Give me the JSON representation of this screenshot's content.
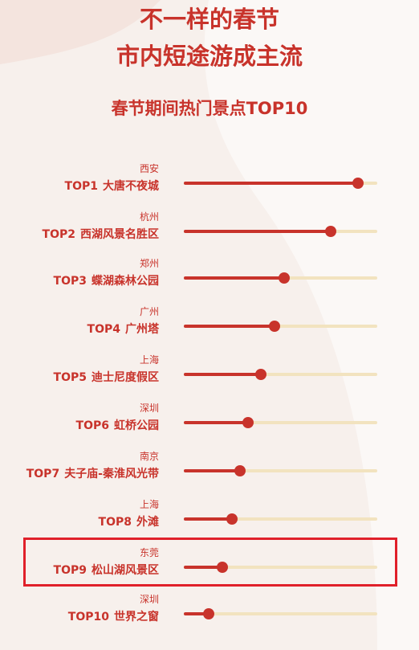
{
  "header": {
    "title_line1": "不一样的春节",
    "title_line2": "市内短途游成主流",
    "subtitle": "春节期间热门景点TOP10"
  },
  "colors": {
    "accent": "#c8332b",
    "track": "#f2e3bf",
    "highlight": "#e0202a",
    "background": "#f7f0ec"
  },
  "chart_data": {
    "type": "bar",
    "title": "春节期间热门景点TOP10",
    "categories": [
      "大唐不夜城",
      "西湖风景名胜区",
      "蝶湖森林公园",
      "广州塔",
      "迪士尼度假区",
      "虹桥公园",
      "夫子庙-秦淮风光带",
      "外滩",
      "松山湖风景区",
      "世界之窗"
    ],
    "series": [
      {
        "values": [
          0.9,
          0.76,
          0.52,
          0.47,
          0.4,
          0.33,
          0.29,
          0.25,
          0.2,
          0.13
        ]
      }
    ],
    "ylim": [
      0,
      1
    ],
    "highlighted_index": 8,
    "items": [
      {
        "city": "西安",
        "rank": "TOP1",
        "name": "大唐不夜城"
      },
      {
        "city": "杭州",
        "rank": "TOP2",
        "name": "西湖风景名胜区"
      },
      {
        "city": "郑州",
        "rank": "TOP3",
        "name": "蝶湖森林公园"
      },
      {
        "city": "广州",
        "rank": "TOP4",
        "name": "广州塔"
      },
      {
        "city": "上海",
        "rank": "TOP5",
        "name": "迪士尼度假区"
      },
      {
        "city": "深圳",
        "rank": "TOP6",
        "name": "虹桥公园"
      },
      {
        "city": "南京",
        "rank": "TOP7",
        "name": "夫子庙-秦淮风光带"
      },
      {
        "city": "上海",
        "rank": "TOP8",
        "name": "外滩"
      },
      {
        "city": "东莞",
        "rank": "TOP9",
        "name": "松山湖风景区"
      },
      {
        "city": "深圳",
        "rank": "TOP10",
        "name": "世界之窗"
      }
    ]
  }
}
